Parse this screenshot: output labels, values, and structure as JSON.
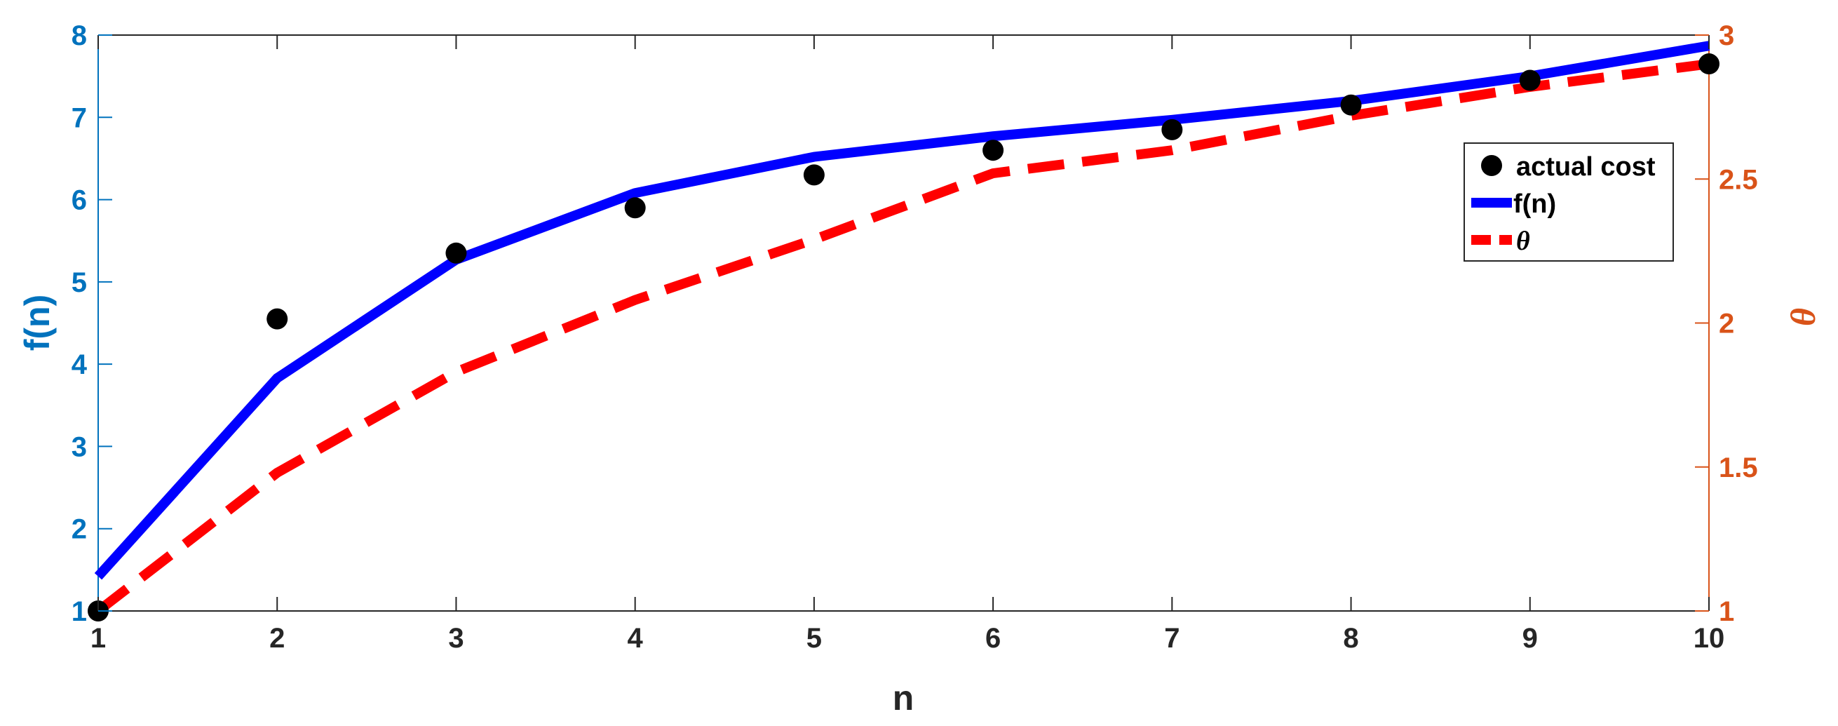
{
  "chart_data": {
    "type": "line",
    "title": "",
    "x": [
      1,
      2,
      3,
      4,
      5,
      6,
      7,
      8,
      9,
      10
    ],
    "xlabel": "n",
    "xlim": [
      1,
      10
    ],
    "xticks": [
      "1",
      "2",
      "3",
      "4",
      "5",
      "6",
      "7",
      "8",
      "9",
      "10"
    ],
    "y_left": {
      "label": "f(n)",
      "lim": [
        1,
        8
      ],
      "ticks": [
        "1",
        "2",
        "3",
        "4",
        "5",
        "6",
        "7",
        "8"
      ],
      "color": "#0072BD"
    },
    "y_right": {
      "label": "θ",
      "lim": [
        1,
        3
      ],
      "ticks": [
        "1",
        "1.5",
        "2",
        "2.5",
        "3"
      ],
      "tick_values": [
        1,
        1.5,
        2,
        2.5,
        3
      ],
      "color": "#D95319"
    },
    "series": [
      {
        "name": "actual cost",
        "style": "scatter",
        "axis": "left",
        "color": "#000000",
        "values": [
          1.0,
          4.55,
          5.35,
          5.9,
          6.3,
          6.6,
          6.85,
          7.15,
          7.45,
          7.65
        ]
      },
      {
        "name": "f(n)",
        "style": "solid-line",
        "axis": "left",
        "color": "#0000FF",
        "values": [
          1.42,
          3.83,
          5.27,
          6.08,
          6.52,
          6.77,
          6.97,
          7.2,
          7.5,
          7.87
        ]
      },
      {
        "name": "θ",
        "style": "dashed-line",
        "axis": "right",
        "color": "#FF0000",
        "values": [
          1.0,
          1.48,
          1.83,
          2.08,
          2.29,
          2.52,
          2.6,
          2.72,
          2.82,
          2.9
        ]
      }
    ],
    "legend": {
      "placement": "top-right",
      "entries": [
        "actual cost",
        "f(n)",
        "θ"
      ]
    },
    "grid": false,
    "box": true
  }
}
